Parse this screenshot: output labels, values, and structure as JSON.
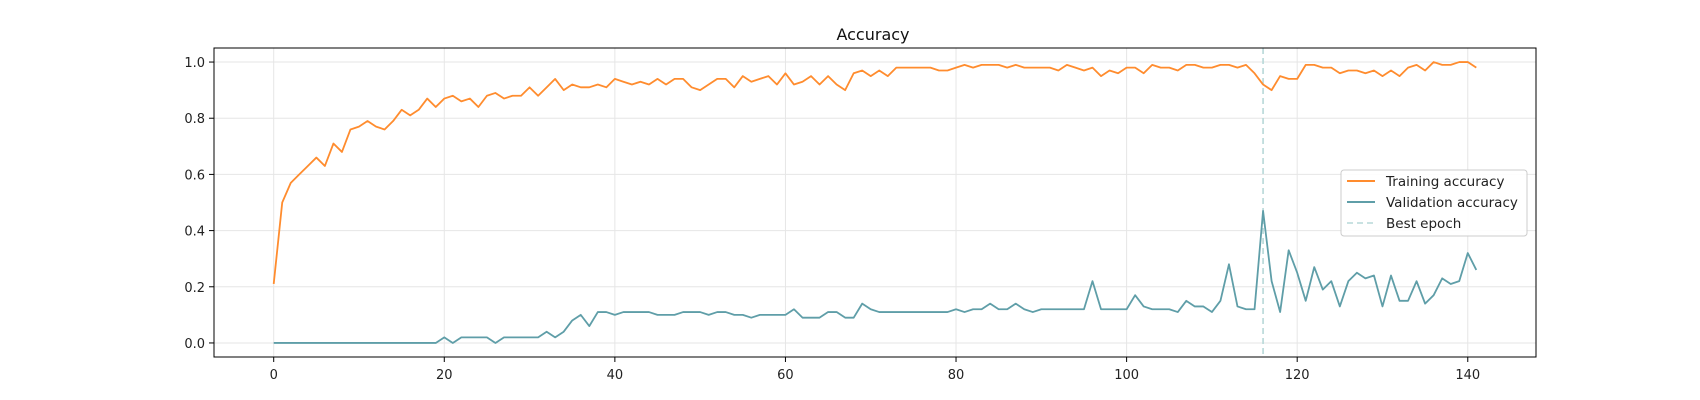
{
  "chart_data": {
    "type": "line",
    "title": "Accuracy",
    "xlabel": "",
    "ylabel": "",
    "xlim": [
      -7,
      148
    ],
    "ylim": [
      -0.05,
      1.05
    ],
    "xticks": [
      0,
      20,
      40,
      60,
      80,
      100,
      120,
      140
    ],
    "yticks": [
      0.0,
      0.2,
      0.4,
      0.6,
      0.8,
      1.0
    ],
    "ytick_labels": [
      "0.0",
      "0.2",
      "0.4",
      "0.6",
      "0.8",
      "1.0"
    ],
    "grid": true,
    "legend_position": "center-right",
    "best_epoch": 116,
    "series": [
      {
        "name": "Training accuracy",
        "color": "#ff8c2e",
        "values": [
          0.21,
          0.5,
          0.57,
          0.6,
          0.63,
          0.66,
          0.63,
          0.71,
          0.68,
          0.76,
          0.77,
          0.79,
          0.77,
          0.76,
          0.79,
          0.83,
          0.81,
          0.83,
          0.87,
          0.84,
          0.87,
          0.88,
          0.86,
          0.87,
          0.84,
          0.88,
          0.89,
          0.87,
          0.88,
          0.88,
          0.91,
          0.88,
          0.91,
          0.94,
          0.9,
          0.92,
          0.91,
          0.91,
          0.92,
          0.91,
          0.94,
          0.93,
          0.92,
          0.93,
          0.92,
          0.94,
          0.92,
          0.94,
          0.94,
          0.91,
          0.9,
          0.92,
          0.94,
          0.94,
          0.91,
          0.95,
          0.93,
          0.94,
          0.95,
          0.92,
          0.96,
          0.92,
          0.93,
          0.95,
          0.92,
          0.95,
          0.92,
          0.9,
          0.96,
          0.97,
          0.95,
          0.97,
          0.95,
          0.98,
          0.98,
          0.98,
          0.98,
          0.98,
          0.97,
          0.97,
          0.98,
          0.99,
          0.98,
          0.99,
          0.99,
          0.99,
          0.98,
          0.99,
          0.98,
          0.98,
          0.98,
          0.98,
          0.97,
          0.99,
          0.98,
          0.97,
          0.98,
          0.95,
          0.97,
          0.96,
          0.98,
          0.98,
          0.96,
          0.99,
          0.98,
          0.98,
          0.97,
          0.99,
          0.99,
          0.98,
          0.98,
          0.99,
          0.99,
          0.98,
          0.99,
          0.96,
          0.92,
          0.9,
          0.95,
          0.94,
          0.94,
          0.99,
          0.99,
          0.98,
          0.98,
          0.96,
          0.97,
          0.97,
          0.96,
          0.97,
          0.95,
          0.97,
          0.95,
          0.98,
          0.99,
          0.97,
          1.0,
          0.99,
          0.99,
          1.0,
          1.0,
          0.98
        ]
      },
      {
        "name": "Validation accuracy",
        "color": "#5f9ea8",
        "values": [
          0.0,
          0.0,
          0.0,
          0.0,
          0.0,
          0.0,
          0.0,
          0.0,
          0.0,
          0.0,
          0.0,
          0.0,
          0.0,
          0.0,
          0.0,
          0.0,
          0.0,
          0.0,
          0.0,
          0.0,
          0.02,
          0.0,
          0.02,
          0.02,
          0.02,
          0.02,
          0.0,
          0.02,
          0.02,
          0.02,
          0.02,
          0.02,
          0.04,
          0.02,
          0.04,
          0.08,
          0.1,
          0.06,
          0.11,
          0.11,
          0.1,
          0.11,
          0.11,
          0.11,
          0.11,
          0.1,
          0.1,
          0.1,
          0.11,
          0.11,
          0.11,
          0.1,
          0.11,
          0.11,
          0.1,
          0.1,
          0.09,
          0.1,
          0.1,
          0.1,
          0.1,
          0.12,
          0.09,
          0.09,
          0.09,
          0.11,
          0.11,
          0.09,
          0.09,
          0.14,
          0.12,
          0.11,
          0.11,
          0.11,
          0.11,
          0.11,
          0.11,
          0.11,
          0.11,
          0.11,
          0.12,
          0.11,
          0.12,
          0.12,
          0.14,
          0.12,
          0.12,
          0.14,
          0.12,
          0.11,
          0.12,
          0.12,
          0.12,
          0.12,
          0.12,
          0.12,
          0.22,
          0.12,
          0.12,
          0.12,
          0.12,
          0.17,
          0.13,
          0.12,
          0.12,
          0.12,
          0.11,
          0.15,
          0.13,
          0.13,
          0.11,
          0.15,
          0.28,
          0.13,
          0.12,
          0.12,
          0.47,
          0.22,
          0.11,
          0.33,
          0.25,
          0.15,
          0.27,
          0.19,
          0.22,
          0.13,
          0.22,
          0.25,
          0.23,
          0.24,
          0.13,
          0.24,
          0.15,
          0.15,
          0.22,
          0.14,
          0.17,
          0.23,
          0.21,
          0.22,
          0.32,
          0.26
        ]
      },
      {
        "name": "Best epoch",
        "color": "#b7d8d8",
        "style": "dashed"
      }
    ]
  }
}
